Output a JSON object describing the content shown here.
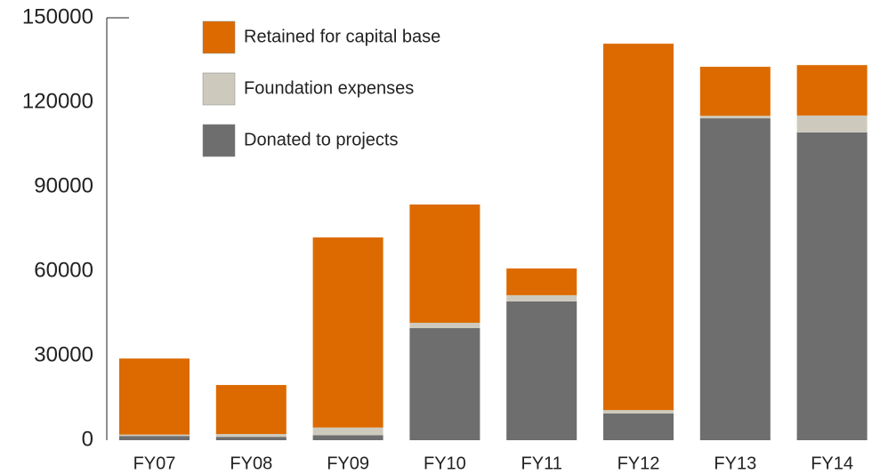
{
  "chart_data": {
    "type": "stacked_bar",
    "categories": [
      "FY07",
      "FY08",
      "FY09",
      "FY10",
      "FY11",
      "FY12",
      "FY13",
      "FY14"
    ],
    "series": [
      {
        "name": "Retained for capital base",
        "color": "#dc6a00",
        "values": [
          27000,
          17400,
          67500,
          42000,
          9500,
          130100,
          17400,
          17900
        ]
      },
      {
        "name": "Foundation expenses",
        "color": "#cdcabd",
        "values": [
          500,
          1000,
          2700,
          1900,
          2200,
          1200,
          900,
          6000
        ]
      },
      {
        "name": "Donated to projects",
        "color": "#6e6e6e",
        "values": [
          1500,
          1200,
          1800,
          39800,
          49300,
          9500,
          114300,
          109300
        ]
      }
    ],
    "ylim": [
      0,
      150000
    ],
    "yticks": [
      0,
      30000,
      60000,
      90000,
      120000,
      150000
    ],
    "grid": false
  }
}
